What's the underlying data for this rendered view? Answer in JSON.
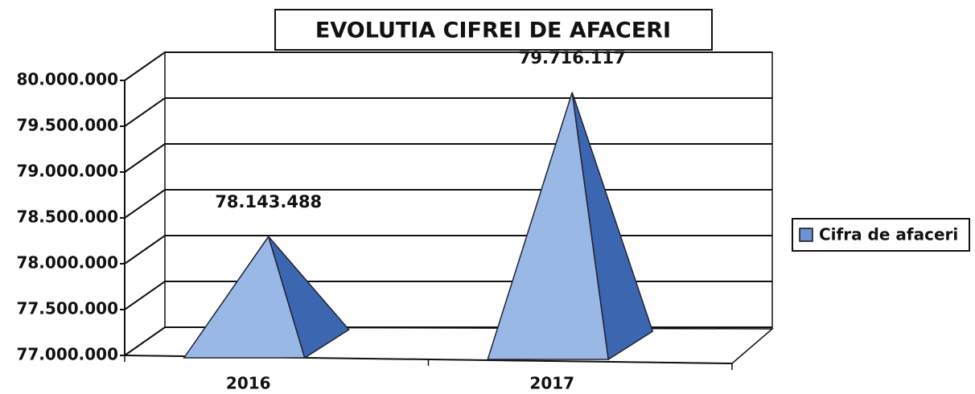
{
  "chart_data": {
    "type": "pyramid",
    "title": "EVOLUTIA CIFREI DE AFACERI",
    "categories": [
      "2016",
      "2017"
    ],
    "series": [
      {
        "name": "Cifra de afaceri",
        "color": "#9ab8e6",
        "values": [
          78143488,
          79716117
        ],
        "value_labels": [
          "78.143.488",
          "79.716.117"
        ]
      }
    ],
    "ylim": [
      77000000,
      80000000
    ],
    "yticks": [
      {
        "value": 77000000,
        "label": "77.000.000"
      },
      {
        "value": 77500000,
        "label": "77.500.000"
      },
      {
        "value": 78000000,
        "label": "78.000.000"
      },
      {
        "value": 78500000,
        "label": "78.500.000"
      },
      {
        "value": 79000000,
        "label": "79.000.000"
      },
      {
        "value": 79500000,
        "label": "79.500.000"
      },
      {
        "value": 80000000,
        "label": "80.000.000"
      }
    ],
    "grid": true,
    "legend": "right"
  }
}
